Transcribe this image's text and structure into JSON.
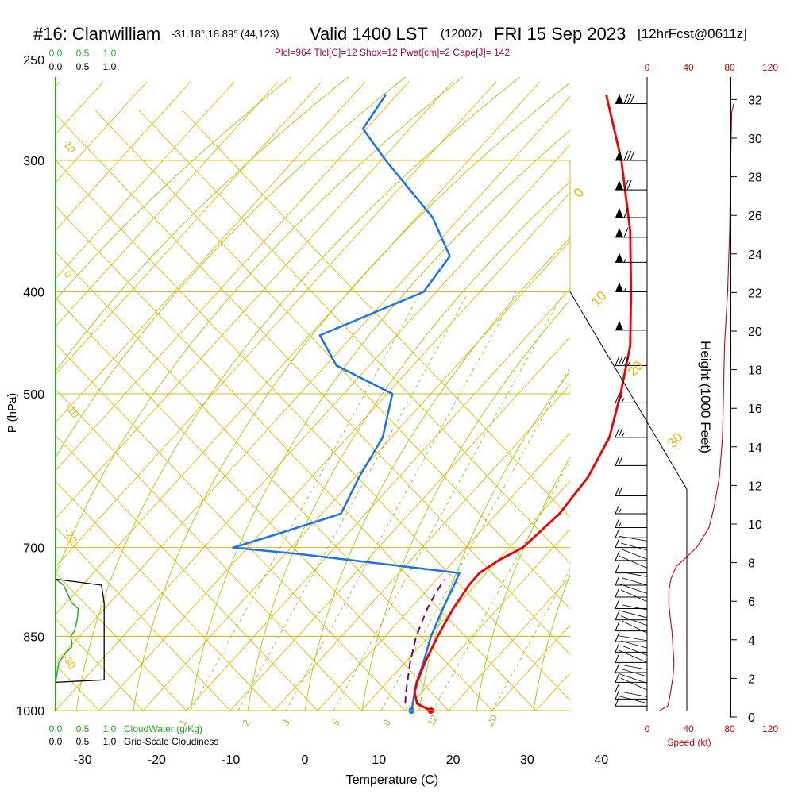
{
  "header": {
    "station": "#16: Clanwilliam",
    "coords": "-31.18°,18.89° (44,123)",
    "valid": "Valid 1400 LST",
    "zulu": "(1200Z)",
    "date": "FRI 15 Sep 2023",
    "forecast": "[12hrFcst@0611z]"
  },
  "indices_text": "Plcl=964 Tlcl[C]=12 Shox=12 Pwat[cm]=2 Cape[J]= 142",
  "colors": {
    "temperature": "#ee0000",
    "dewpoint": "#1874e8",
    "parcel": "#800060",
    "isobar": "#f0b400",
    "dry_adiabat": "#f0b400",
    "moist_adiabat": "#a8d020",
    "mixing_ratio": "#90c828",
    "cloud": "#22aa22",
    "wind_speed": "#cc0000",
    "indices": "#a0005a"
  },
  "chart_data": {
    "type": "line",
    "title": "Skew-T Log-P sounding",
    "xlabel": "Temperature (C)",
    "ylabel": "P (hPa)",
    "right_axis_label": "Height (1000 Feet)",
    "x_ticks": [
      -30,
      -20,
      -10,
      0,
      10,
      20,
      30,
      40
    ],
    "pressure_ticks": [
      1000,
      850,
      700,
      500,
      400,
      300,
      250
    ],
    "pressure_range": [
      1000,
      250
    ],
    "height_ticks": [
      0,
      2,
      4,
      6,
      8,
      10,
      12,
      14,
      16,
      18,
      20,
      22,
      24,
      26,
      28,
      30,
      32
    ],
    "cloud_axis": {
      "cloudwater_ticks": [
        "0.0",
        "0.5",
        "1.0"
      ],
      "cloudwater_label": "CloudWater (g/Kg)",
      "cloudiness_ticks": [
        "0.0",
        "0.5",
        "1.0"
      ],
      "cloudiness_label": "Grid-Scale Cloudiness"
    },
    "speed_axis": {
      "ticks": [
        "0",
        "40",
        "80",
        "120"
      ],
      "label": "Speed (kt)"
    },
    "series": [
      {
        "name": "Temperature",
        "points": [
          [
            1000,
            17.0
          ],
          [
            985,
            14.4
          ],
          [
            960,
            12.8
          ],
          [
            940,
            12.1
          ],
          [
            900,
            11.0
          ],
          [
            850,
            9.9
          ],
          [
            800,
            9.0
          ],
          [
            760,
            8.6
          ],
          [
            740,
            8.7
          ],
          [
            720,
            9.9
          ],
          [
            700,
            11.8
          ],
          [
            650,
            13.1
          ],
          [
            600,
            13.0
          ],
          [
            550,
            11.6
          ],
          [
            500,
            8.4
          ],
          [
            450,
            4.5
          ],
          [
            400,
            -1.2
          ],
          [
            350,
            -7.9
          ],
          [
            300,
            -16.7
          ],
          [
            260,
            -25.8
          ]
        ]
      },
      {
        "name": "Dewpoint",
        "points": [
          [
            1000,
            14.4
          ],
          [
            960,
            12.8
          ],
          [
            940,
            12.0
          ],
          [
            900,
            10.8
          ],
          [
            850,
            9.0
          ],
          [
            800,
            7.6
          ],
          [
            760,
            6.6
          ],
          [
            740,
            6.0
          ],
          [
            710,
            -17.5
          ],
          [
            700,
            -27.3
          ],
          [
            680,
            -22.9
          ],
          [
            650,
            -16.4
          ],
          [
            600,
            -17.9
          ],
          [
            550,
            -19.0
          ],
          [
            500,
            -22.4
          ],
          [
            470,
            -33.0
          ],
          [
            440,
            -38.5
          ],
          [
            400,
            -29.2
          ],
          [
            370,
            -29.5
          ],
          [
            340,
            -36.0
          ],
          [
            300,
            -48.5
          ],
          [
            280,
            -55.0
          ],
          [
            260,
            -55.6
          ]
        ]
      },
      {
        "name": "Parcel",
        "points": [
          [
            985,
            12.8
          ],
          [
            964,
            11.8
          ],
          [
            900,
            9.0
          ],
          [
            850,
            7.0
          ],
          [
            800,
            5.5
          ],
          [
            770,
            4.9
          ],
          [
            750,
            4.7
          ]
        ]
      }
    ],
    "surface_markers": {
      "temperature": 17.0,
      "dewpoint": 14.4,
      "pressure": 1000
    },
    "dry_adiabat_labels": [
      "10",
      "0",
      "-10",
      "-20",
      "-30"
    ],
    "moist_adiabat_labels": [
      "0",
      "10",
      "20",
      "30"
    ],
    "mixing_ratio_labels": [
      "1",
      "2",
      "3",
      "5",
      "8",
      "12",
      "20"
    ],
    "cloud_water": [
      [
        1000,
        0
      ],
      [
        940,
        0
      ],
      [
        900,
        0.06
      ],
      [
        880,
        0.2
      ],
      [
        870,
        0.3
      ],
      [
        860,
        0.3
      ],
      [
        850,
        0.28
      ],
      [
        840,
        0.35
      ],
      [
        820,
        0.4
      ],
      [
        800,
        0.42
      ],
      [
        790,
        0.3
      ],
      [
        770,
        0.2
      ],
      [
        760,
        0.15
      ],
      [
        750,
        0
      ]
    ],
    "cloudiness": [
      [
        940,
        0
      ],
      [
        935,
        0.9
      ],
      [
        790,
        0.9
      ],
      [
        760,
        0.85
      ],
      [
        750,
        0
      ]
    ],
    "wind_speed_kt": [
      [
        1000,
        12
      ],
      [
        990,
        20
      ],
      [
        970,
        22
      ],
      [
        930,
        25
      ],
      [
        900,
        26
      ],
      [
        870,
        25
      ],
      [
        840,
        24
      ],
      [
        810,
        22
      ],
      [
        790,
        21
      ],
      [
        770,
        21
      ],
      [
        750,
        23
      ],
      [
        730,
        28
      ],
      [
        715,
        38
      ],
      [
        700,
        48
      ],
      [
        670,
        60
      ],
      [
        640,
        65
      ],
      [
        600,
        70
      ],
      [
        550,
        73
      ],
      [
        500,
        74
      ],
      [
        450,
        75
      ],
      [
        400,
        78
      ],
      [
        350,
        80
      ],
      [
        300,
        81
      ],
      [
        270,
        82
      ],
      [
        265,
        84
      ]
    ],
    "wind_barbs": [
      {
        "pressure": 265,
        "speed_kt": 80
      },
      {
        "pressure": 300,
        "speed_kt": 80
      },
      {
        "pressure": 320,
        "speed_kt": 70
      },
      {
        "pressure": 340,
        "speed_kt": 60
      },
      {
        "pressure": 355,
        "speed_kt": 60
      },
      {
        "pressure": 375,
        "speed_kt": 55
      },
      {
        "pressure": 400,
        "speed_kt": 55
      },
      {
        "pressure": 435,
        "speed_kt": 50
      },
      {
        "pressure": 470,
        "speed_kt": 45
      },
      {
        "pressure": 510,
        "speed_kt": 25
      },
      {
        "pressure": 550,
        "speed_kt": 25
      },
      {
        "pressure": 585,
        "speed_kt": 20
      },
      {
        "pressure": 625,
        "speed_kt": 20
      },
      {
        "pressure": 650,
        "speed_kt": 15
      },
      {
        "pressure": 670,
        "speed_kt": 15
      },
      {
        "pressure": 685,
        "speed_kt": 10
      },
      {
        "pressure": 700,
        "speed_kt": 10
      },
      {
        "pressure": 720,
        "speed_kt": 10
      },
      {
        "pressure": 740,
        "speed_kt": 10
      },
      {
        "pressure": 760,
        "speed_kt": 10
      },
      {
        "pressure": 780,
        "speed_kt": 10
      },
      {
        "pressure": 800,
        "speed_kt": 10
      },
      {
        "pressure": 820,
        "speed_kt": 10
      },
      {
        "pressure": 840,
        "speed_kt": 10
      },
      {
        "pressure": 860,
        "speed_kt": 10
      },
      {
        "pressure": 880,
        "speed_kt": 10
      },
      {
        "pressure": 900,
        "speed_kt": 10
      },
      {
        "pressure": 920,
        "speed_kt": 10
      },
      {
        "pressure": 940,
        "speed_kt": 10
      },
      {
        "pressure": 960,
        "speed_kt": 10
      },
      {
        "pressure": 975,
        "speed_kt": 10
      },
      {
        "pressure": 990,
        "speed_kt": 10
      }
    ]
  }
}
